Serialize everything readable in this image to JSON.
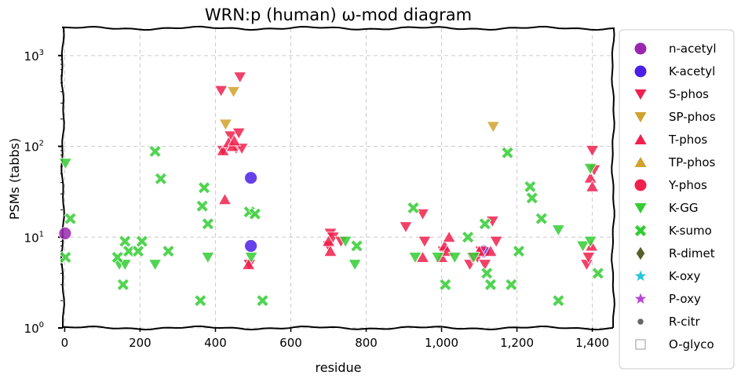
{
  "chart_data": {
    "type": "scatter",
    "title": "WRN:p (human) ω-mod diagram",
    "xlabel": "residue",
    "ylabel": "PSMs (tabbs)",
    "xlim": [
      -5,
      1455
    ],
    "ylim": [
      1,
      2000
    ],
    "yscale": "log",
    "grid": true,
    "legend_position": "outside-right",
    "x_ticks": [
      0,
      200,
      400,
      600,
      800,
      1000,
      1200,
      1400
    ],
    "x_tick_labels": [
      "0",
      "200",
      "400",
      "600",
      "800",
      "1,000",
      "1,200",
      "1,400"
    ],
    "y_ticks": [
      1,
      10,
      100,
      1000
    ],
    "y_tick_labels": [
      "10",
      "10",
      "10",
      "10"
    ],
    "y_tick_exponents": [
      "0",
      "1",
      "2",
      "3"
    ],
    "series": [
      {
        "name": "n-acetyl",
        "marker": "circle",
        "color": "#9b27b0",
        "points": [
          [
            1,
            11
          ]
        ]
      },
      {
        "name": "K-acetyl",
        "marker": "circle",
        "color": "#4b1fe6",
        "points": [
          [
            494,
            45
          ],
          [
            494,
            8
          ],
          [
            1112,
            7
          ]
        ]
      },
      {
        "name": "S-phos",
        "marker": "triangle-down",
        "color": "#f0204c",
        "points": [
          [
            415,
            410
          ],
          [
            465,
            580
          ],
          [
            420,
            90
          ],
          [
            440,
            130
          ],
          [
            455,
            95
          ],
          [
            462,
            140
          ],
          [
            470,
            95
          ],
          [
            490,
            5
          ],
          [
            700,
            8
          ],
          [
            705,
            11
          ],
          [
            712,
            10
          ],
          [
            733,
            9
          ],
          [
            905,
            13
          ],
          [
            950,
            18
          ],
          [
            955,
            9
          ],
          [
            1005,
            7
          ],
          [
            1075,
            5
          ],
          [
            1082,
            6
          ],
          [
            1095,
            6
          ],
          [
            1105,
            7
          ],
          [
            1115,
            5
          ],
          [
            1135,
            15
          ],
          [
            1145,
            9
          ],
          [
            1385,
            5
          ],
          [
            1390,
            6
          ],
          [
            1400,
            90
          ],
          [
            1405,
            55
          ]
        ]
      },
      {
        "name": "SP-phos",
        "marker": "triangle-down",
        "color": "#d1a12c",
        "points": [
          [
            448,
            400
          ],
          [
            427,
            175
          ],
          [
            1137,
            165
          ]
        ]
      },
      {
        "name": "T-phos",
        "marker": "triangle-up",
        "color": "#f0204c",
        "points": [
          [
            420,
            90
          ],
          [
            425,
            26
          ],
          [
            435,
            110
          ],
          [
            445,
            100
          ],
          [
            450,
            115
          ],
          [
            488,
            5
          ],
          [
            705,
            7
          ],
          [
            700,
            9
          ],
          [
            950,
            6
          ],
          [
            1000,
            6
          ],
          [
            1008,
            8
          ],
          [
            1015,
            7
          ],
          [
            1020,
            10
          ],
          [
            1100,
            7
          ],
          [
            1130,
            7
          ],
          [
            1395,
            45
          ],
          [
            1400,
            36
          ],
          [
            1398,
            8
          ]
        ]
      },
      {
        "name": "TP-phos",
        "marker": "triangle-up",
        "color": "#d1a12c",
        "points": []
      },
      {
        "name": "Y-phos",
        "marker": "circle",
        "color": "#f0204c",
        "points": []
      },
      {
        "name": "K-GG",
        "marker": "triangle-down",
        "color": "#33cc33",
        "points": [
          [
            2,
            65
          ],
          [
            145,
            5
          ],
          [
            160,
            5
          ],
          [
            240,
            5
          ],
          [
            380,
            6
          ],
          [
            495,
            6
          ],
          [
            745,
            9
          ],
          [
            770,
            5
          ],
          [
            930,
            6
          ],
          [
            990,
            6
          ],
          [
            1035,
            6
          ],
          [
            1085,
            6
          ],
          [
            1310,
            12
          ],
          [
            1375,
            8
          ],
          [
            1395,
            9
          ],
          [
            1395,
            57
          ]
        ]
      },
      {
        "name": "K-sumo",
        "marker": "x",
        "color": "#33cc33",
        "points": [
          [
            2,
            6
          ],
          [
            15,
            16
          ],
          [
            140,
            6
          ],
          [
            155,
            3
          ],
          [
            160,
            9
          ],
          [
            170,
            7
          ],
          [
            195,
            7
          ],
          [
            205,
            9
          ],
          [
            240,
            88
          ],
          [
            255,
            44
          ],
          [
            275,
            7
          ],
          [
            360,
            2
          ],
          [
            365,
            22
          ],
          [
            370,
            35
          ],
          [
            380,
            14
          ],
          [
            490,
            19
          ],
          [
            505,
            18
          ],
          [
            525,
            2
          ],
          [
            775,
            8
          ],
          [
            925,
            21
          ],
          [
            1010,
            3
          ],
          [
            1070,
            10
          ],
          [
            1115,
            14
          ],
          [
            1120,
            4
          ],
          [
            1130,
            3
          ],
          [
            1185,
            3
          ],
          [
            1205,
            7
          ],
          [
            1175,
            85
          ],
          [
            1235,
            36
          ],
          [
            1240,
            27
          ],
          [
            1265,
            16
          ],
          [
            1310,
            2
          ],
          [
            1415,
            4
          ]
        ]
      },
      {
        "name": "R-dimet",
        "marker": "diamond",
        "color": "#55612a",
        "points": []
      },
      {
        "name": "K-oxy",
        "marker": "star",
        "color": "#26c6da",
        "points": []
      },
      {
        "name": "P-oxy",
        "marker": "star",
        "color": "#b845d6",
        "points": []
      },
      {
        "name": "R-citr",
        "marker": "small-circle",
        "color": "#666666",
        "points": []
      },
      {
        "name": "O-glyco",
        "marker": "square-open",
        "color": "#aaaaaa",
        "points": []
      }
    ]
  }
}
